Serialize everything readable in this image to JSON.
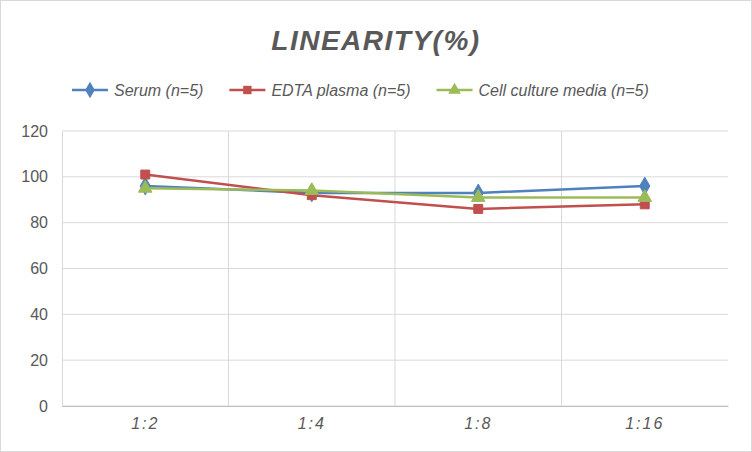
{
  "chart_data": {
    "type": "line",
    "title": "LINEARITY(%)",
    "categories": [
      "1:2",
      "1:4",
      "1:8",
      "1:16"
    ],
    "series": [
      {
        "name": "Serum (n=5)",
        "color": "#4f81bd",
        "marker": "diamond",
        "values": [
          96,
          93,
          93,
          96
        ]
      },
      {
        "name": "EDTA plasma (n=5)",
        "color": "#c0504d",
        "marker": "square",
        "values": [
          101,
          92,
          86,
          88
        ]
      },
      {
        "name": "Cell culture media (n=5)",
        "color": "#9bbb59",
        "marker": "triangle",
        "values": [
          95,
          94,
          91,
          91
        ]
      }
    ],
    "ylim": [
      0,
      120
    ],
    "yticks": [
      0,
      20,
      40,
      60,
      80,
      100,
      120
    ],
    "grid": true,
    "legend": "top"
  }
}
